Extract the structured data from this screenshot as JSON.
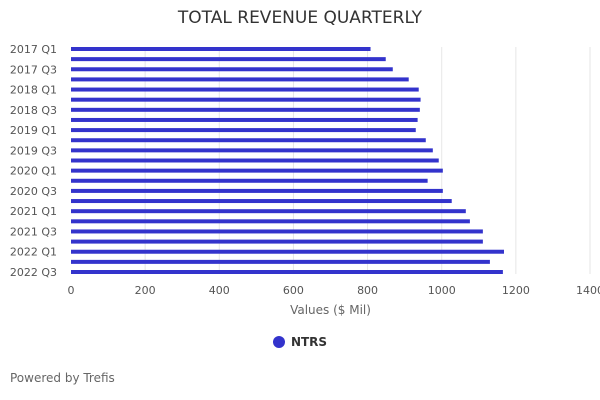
{
  "chart_data": {
    "type": "bar",
    "orientation": "horizontal",
    "title": "TOTAL REVENUE QUARTERLY",
    "xlabel": "Values ($ Mil)",
    "ylabel": "",
    "y_tick_labels": [
      "2017 Q1",
      "2017 Q3",
      "2018 Q1",
      "2018 Q3",
      "2019 Q1",
      "2019 Q3",
      "2020 Q1",
      "2020 Q3",
      "2021 Q1",
      "2021 Q3",
      "2022 Q1",
      "2022 Q3"
    ],
    "values": [
      808,
      849,
      868,
      911,
      938,
      943,
      941,
      935,
      930,
      957,
      976,
      992,
      1003,
      962,
      1003,
      1027,
      1065,
      1076,
      1111,
      1111,
      1168,
      1130,
      1165
    ],
    "x_ticks": [
      "0",
      "200",
      "400",
      "600",
      "800",
      "1000",
      "1200",
      "1400"
    ],
    "xlim": [
      0,
      1400
    ],
    "grid": true,
    "legend": {
      "position": "bottom",
      "entries": [
        "NTRS"
      ]
    },
    "series_color": "#3333cc"
  },
  "footer": {
    "credit": "Powered by Trefis"
  }
}
